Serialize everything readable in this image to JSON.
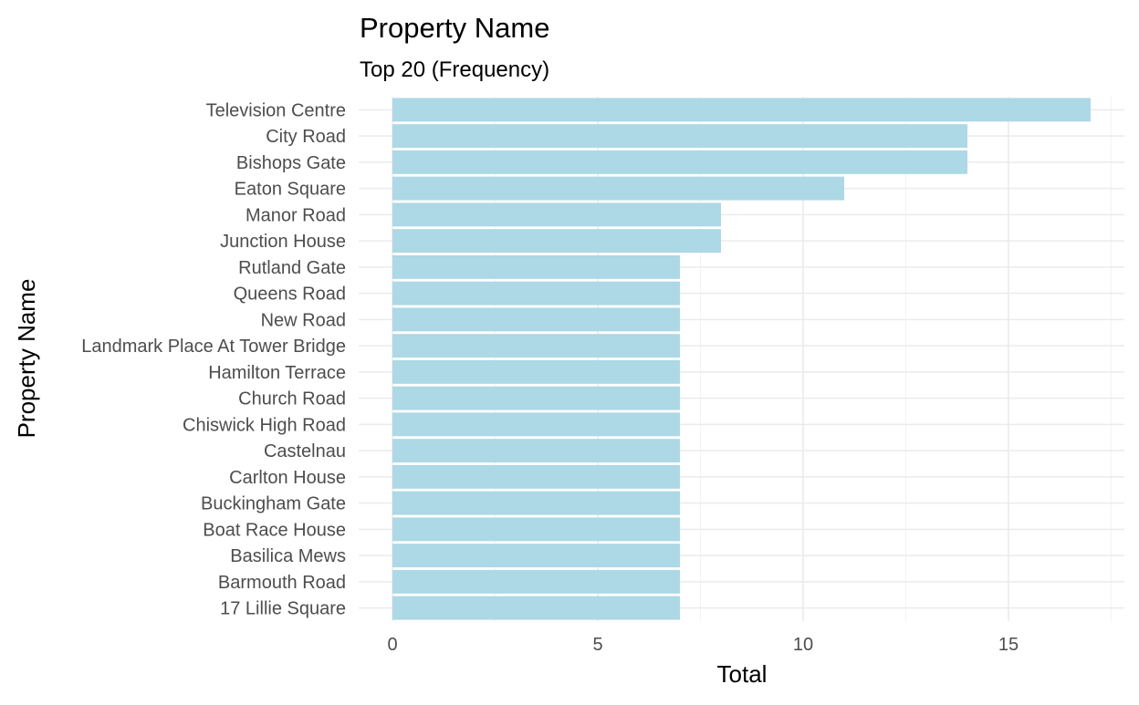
{
  "chart_data": {
    "type": "bar",
    "orientation": "horizontal",
    "title": "Property Name",
    "subtitle": "Top 20 (Frequency)",
    "xlabel": "Total",
    "ylabel": "Property Name",
    "categories": [
      "Television Centre",
      "City Road",
      "Bishops Gate",
      "Eaton Square",
      "Manor Road",
      "Junction House",
      "Rutland Gate",
      "Queens Road",
      "New Road",
      "Landmark Place At Tower Bridge",
      "Hamilton Terrace",
      "Church Road",
      "Chiswick High Road",
      "Castelnau",
      "Carlton House",
      "Buckingham Gate",
      "Boat Race House",
      "Basilica Mews",
      "Barmouth Road",
      "17 Lillie Square"
    ],
    "values": [
      17,
      14,
      14,
      11,
      8,
      8,
      7,
      7,
      7,
      7,
      7,
      7,
      7,
      7,
      7,
      7,
      7,
      7,
      7,
      7
    ],
    "xlim": [
      0,
      17.5
    ],
    "x_ticks": [
      "0",
      "5",
      "10",
      "15"
    ],
    "grid": true,
    "legend": "none",
    "bar_color": "#add8e6"
  }
}
